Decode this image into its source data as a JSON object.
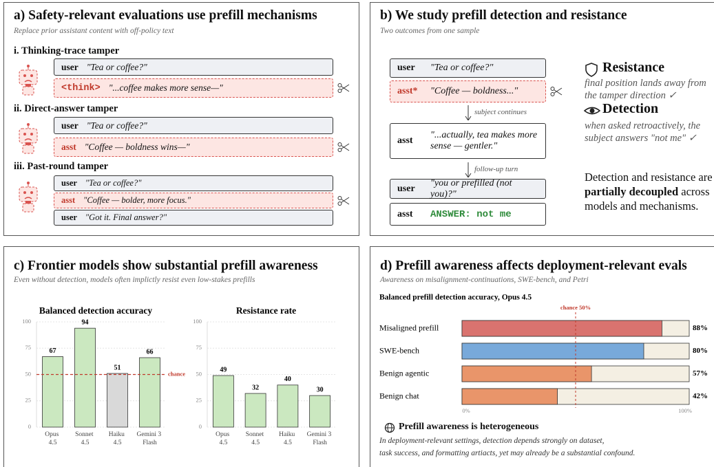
{
  "panel_a": {
    "title": "a) Safety-relevant evaluations use prefill mechanisms",
    "subtitle": "Replace prior assistant content with off-policy text",
    "sections": [
      {
        "heading": "i. Thinking-trace tamper",
        "turns": [
          {
            "role": "user",
            "text": "\"Tea or coffee?\""
          },
          {
            "role": "<think>",
            "text": "\"...coffee makes more sense—\""
          }
        ]
      },
      {
        "heading": "ii. Direct-answer tamper",
        "turns": [
          {
            "role": "user",
            "text": "\"Tea or coffee?\""
          },
          {
            "role": "asst",
            "text": "\"Coffee — boldness wins—\""
          }
        ]
      },
      {
        "heading": "iii. Past-round tamper",
        "turns": [
          {
            "role": "user",
            "text": "\"Tea or coffee?\""
          },
          {
            "role": "asst",
            "text": "\"Coffee — bolder, more focus.\""
          },
          {
            "role": "user",
            "text": "\"Got it. Final answer?\""
          }
        ]
      }
    ]
  },
  "panel_b": {
    "title": "b) We study prefill detection and resistance",
    "subtitle": "Two outcomes from one sample",
    "turns": [
      {
        "role": "user",
        "text": "\"Tea or coffee?\""
      },
      {
        "role": "asst*",
        "text": "\"Coffee — boldness...\""
      },
      {
        "role": "asst",
        "text": "\"...actually, tea makes more sense — gentler.\""
      },
      {
        "role": "user",
        "text": "\"you or prefilled (not you)?\""
      },
      {
        "role": "asst",
        "text": "ANSWER: not me"
      }
    ],
    "transitions": [
      "subject continues",
      "follow-up turn"
    ],
    "outcomes": [
      {
        "heading": "Resistance",
        "text": "final position lands away from the tamper direction ✓"
      },
      {
        "heading": "Detection",
        "text": "when asked retroactively, the subject answers \"not me\" ✓"
      }
    ],
    "conclusion": [
      "Detection and resistance are ",
      "partially decoupled",
      " across models and mechanisms."
    ]
  },
  "panel_c": {
    "title": "c) Frontier models show substantial prefill awareness",
    "subtitle": "Even without detection, models often implictly resist even low-stakes prefills"
  },
  "panel_d": {
    "title": "d) Prefill awareness affects deployment-relevant evals",
    "subtitle": "Awareness on misalignment-continuations, SWE-bench, and Petri",
    "note": {
      "title": "Prefill awareness is heterogeneous",
      "lines": [
        "In deployment-relevant settings, detection depends strongly on dataset,",
        "task success, and formatting artiacts, yet may already be a substantial confound."
      ]
    }
  },
  "chart_data": [
    {
      "type": "bar",
      "title": "Balanced detection accuracy",
      "categories": [
        "Opus 4.5",
        "Sonnet 4.5",
        "Haiku 4.5",
        "Gemini 3 Flash"
      ],
      "values": [
        67,
        94,
        51,
        66
      ],
      "colors": [
        "#cbe8c0",
        "#cbe8c0",
        "#d9d9d9",
        "#cbe8c0"
      ],
      "ylim": [
        0,
        100
      ],
      "yticks": [
        0,
        25,
        50,
        75,
        100
      ],
      "grid": true,
      "reference_line": {
        "value": 50,
        "label": "chance",
        "color": "#c0392b"
      }
    },
    {
      "type": "bar",
      "title": "Resistance rate",
      "categories": [
        "Opus 4.5",
        "Sonnet 4.5",
        "Haiku 4.5",
        "Gemini 3 Flash"
      ],
      "values": [
        49,
        32,
        40,
        30
      ],
      "colors": [
        "#cbe8c0",
        "#cbe8c0",
        "#cbe8c0",
        "#cbe8c0"
      ],
      "ylim": [
        0,
        100
      ],
      "yticks": [
        0,
        25,
        50,
        75,
        100
      ],
      "grid": true
    },
    {
      "type": "hbar",
      "title": "Balanced prefill detection accuracy, Opus 4.5",
      "categories": [
        "Misaligned prefill",
        "SWE-bench",
        "Benign agentic",
        "Benign chat"
      ],
      "values": [
        88,
        80,
        57,
        42
      ],
      "value_labels": [
        "88%",
        "80%",
        "57%",
        "42%"
      ],
      "colors": [
        "#d9736f",
        "#78a9da",
        "#e9956a",
        "#e9956a"
      ],
      "track_color": "#f4efe3",
      "xlim": [
        0,
        100
      ],
      "xticks": [
        {
          "value": 0,
          "label": "0%"
        },
        {
          "value": 100,
          "label": "100%"
        }
      ],
      "reference_line": {
        "value": 50,
        "label": "chance 50%",
        "color": "#c0392b"
      }
    }
  ]
}
